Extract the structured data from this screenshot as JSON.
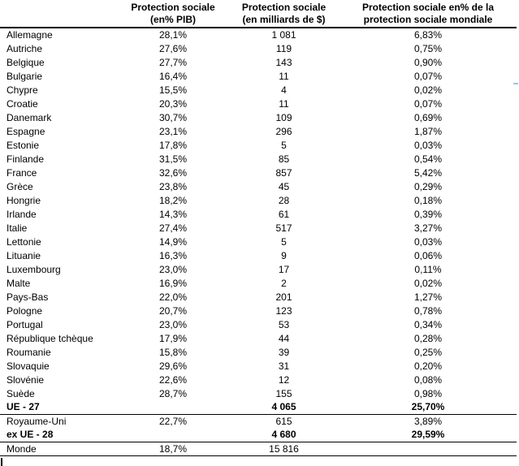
{
  "colors": {
    "text": "#000000",
    "rule_line": "#000000",
    "background": "#ffffff",
    "comment_mark": "#9dc3e6"
  },
  "table": {
    "header": {
      "col1": "",
      "col2": [
        "Protection sociale",
        "(en% PIB)"
      ],
      "col3": [
        "Protection sociale",
        "(en milliards de $)"
      ],
      "col4": [
        "Protection sociale en% de la",
        "protection sociale mondiale"
      ]
    },
    "rows": [
      {
        "name": "Allemagne",
        "pib": "28,1%",
        "usd": "1 081",
        "share": "6,83%",
        "bold": false,
        "rule": false
      },
      {
        "name": "Autriche",
        "pib": "27,6%",
        "usd": "119",
        "share": "0,75%",
        "bold": false,
        "rule": false
      },
      {
        "name": "Belgique",
        "pib": "27,7%",
        "usd": "143",
        "share": "0,90%",
        "bold": false,
        "rule": false
      },
      {
        "name": "Bulgarie",
        "pib": "16,4%",
        "usd": "11",
        "share": "0,07%",
        "bold": false,
        "rule": false
      },
      {
        "name": "Chypre",
        "pib": "15,5%",
        "usd": "4",
        "share": "0,02%",
        "bold": false,
        "rule": false
      },
      {
        "name": "Croatie",
        "pib": "20,3%",
        "usd": "11",
        "share": "0,07%",
        "bold": false,
        "rule": false
      },
      {
        "name": "Danemark",
        "pib": "30,7%",
        "usd": "109",
        "share": "0,69%",
        "bold": false,
        "rule": false
      },
      {
        "name": "Espagne",
        "pib": "23,1%",
        "usd": "296",
        "share": "1,87%",
        "bold": false,
        "rule": false
      },
      {
        "name": "Estonie",
        "pib": "17,8%",
        "usd": "5",
        "share": "0,03%",
        "bold": false,
        "rule": false
      },
      {
        "name": "Finlande",
        "pib": "31,5%",
        "usd": "85",
        "share": "0,54%",
        "bold": false,
        "rule": false
      },
      {
        "name": "France",
        "pib": "32,6%",
        "usd": "857",
        "share": "5,42%",
        "bold": false,
        "rule": false
      },
      {
        "name": "Grèce",
        "pib": "23,8%",
        "usd": "45",
        "share": "0,29%",
        "bold": false,
        "rule": false
      },
      {
        "name": "Hongrie",
        "pib": "18,2%",
        "usd": "28",
        "share": "0,18%",
        "bold": false,
        "rule": false
      },
      {
        "name": "Irlande",
        "pib": "14,3%",
        "usd": "61",
        "share": "0,39%",
        "bold": false,
        "rule": false
      },
      {
        "name": "Italie",
        "pib": "27,4%",
        "usd": "517",
        "share": "3,27%",
        "bold": false,
        "rule": false
      },
      {
        "name": "Lettonie",
        "pib": "14,9%",
        "usd": "5",
        "share": "0,03%",
        "bold": false,
        "rule": false
      },
      {
        "name": "Lituanie",
        "pib": "16,3%",
        "usd": "9",
        "share": "0,06%",
        "bold": false,
        "rule": false
      },
      {
        "name": "Luxembourg",
        "pib": "23,0%",
        "usd": "17",
        "share": "0,11%",
        "bold": false,
        "rule": false
      },
      {
        "name": "Malte",
        "pib": "16,9%",
        "usd": "2",
        "share": "0,02%",
        "bold": false,
        "rule": false
      },
      {
        "name": "Pays-Bas",
        "pib": "22,0%",
        "usd": "201",
        "share": "1,27%",
        "bold": false,
        "rule": false
      },
      {
        "name": "Pologne",
        "pib": "20,7%",
        "usd": "123",
        "share": "0,78%",
        "bold": false,
        "rule": false
      },
      {
        "name": "Portugal",
        "pib": "23,0%",
        "usd": "53",
        "share": "0,34%",
        "bold": false,
        "rule": false
      },
      {
        "name": "République tchèque",
        "pib": "17,9%",
        "usd": "44",
        "share": "0,28%",
        "bold": false,
        "rule": false
      },
      {
        "name": "Roumanie",
        "pib": "15,8%",
        "usd": "39",
        "share": "0,25%",
        "bold": false,
        "rule": false
      },
      {
        "name": "Slovaquie",
        "pib": "29,6%",
        "usd": "31",
        "share": "0,20%",
        "bold": false,
        "rule": false
      },
      {
        "name": "Slovénie",
        "pib": "22,6%",
        "usd": "12",
        "share": "0,08%",
        "bold": false,
        "rule": false
      },
      {
        "name": "Suède",
        "pib": "28,7%",
        "usd": "155",
        "share": "0,98%",
        "bold": false,
        "rule": false
      },
      {
        "name": "UE - 27",
        "pib": "",
        "usd": "4 065",
        "share": "25,70%",
        "bold": true,
        "rule": true
      },
      {
        "name": "Royaume-Uni",
        "pib": "22,7%",
        "usd": "615",
        "share": "3,89%",
        "bold": false,
        "rule": false
      },
      {
        "name": "ex UE - 28",
        "pib": "",
        "usd": "4 680",
        "share": "29,59%",
        "bold": true,
        "rule": true
      },
      {
        "name": "Monde",
        "pib": "18,7%",
        "usd": "15 816",
        "share": "",
        "bold": false,
        "rule": true
      }
    ]
  }
}
